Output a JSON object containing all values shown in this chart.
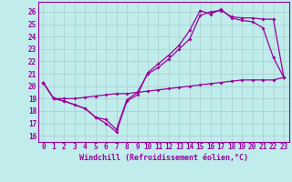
{
  "bg_color": "#c0ecec",
  "line_color": "#990099",
  "grid_color": "#aacccc",
  "xlabel": "Windchill (Refroidissement éolien,°C)",
  "xlim": [
    -0.5,
    23.5
  ],
  "ylim": [
    15.5,
    26.8
  ],
  "yticks": [
    16,
    17,
    18,
    19,
    20,
    21,
    22,
    23,
    24,
    25,
    26
  ],
  "xticks": [
    0,
    1,
    2,
    3,
    4,
    5,
    6,
    7,
    8,
    9,
    10,
    11,
    12,
    13,
    14,
    15,
    16,
    17,
    18,
    19,
    20,
    21,
    22,
    23
  ],
  "line1_x": [
    0,
    1,
    2,
    3,
    4,
    5,
    6,
    7,
    8,
    9,
    10,
    11,
    12,
    13,
    14,
    15,
    16,
    17,
    18,
    19,
    20,
    21,
    22,
    23
  ],
  "line1_y": [
    20.3,
    19.0,
    19.0,
    19.0,
    19.1,
    19.2,
    19.3,
    19.4,
    19.4,
    19.5,
    19.6,
    19.7,
    19.8,
    19.9,
    20.0,
    20.1,
    20.2,
    20.3,
    20.4,
    20.5,
    20.5,
    20.5,
    20.5,
    20.7
  ],
  "line2_x": [
    0,
    1,
    2,
    3,
    4,
    5,
    6,
    7,
    8,
    9,
    10,
    11,
    12,
    13,
    14,
    15,
    16,
    17,
    18,
    19,
    20,
    21,
    22,
    23
  ],
  "line2_y": [
    20.3,
    19.0,
    18.8,
    18.5,
    18.2,
    17.5,
    17.0,
    16.3,
    18.8,
    19.3,
    21.1,
    21.8,
    22.5,
    23.3,
    24.5,
    26.1,
    25.8,
    26.2,
    25.5,
    25.3,
    25.2,
    24.7,
    22.3,
    20.7
  ],
  "line3_x": [
    0,
    1,
    2,
    3,
    4,
    5,
    6,
    7,
    8,
    9,
    10,
    11,
    12,
    13,
    14,
    15,
    16,
    17,
    18,
    19,
    20,
    21,
    22,
    23
  ],
  "line3_y": [
    20.3,
    19.0,
    18.8,
    18.5,
    18.2,
    17.5,
    17.3,
    16.5,
    18.9,
    19.5,
    21.0,
    21.5,
    22.2,
    23.0,
    23.8,
    25.7,
    26.0,
    26.1,
    25.6,
    25.5,
    25.5,
    25.4,
    25.4,
    20.7
  ],
  "xlabel_fontsize": 6,
  "tick_fontsize": 5.5,
  "linewidth": 0.9,
  "markersize": 2.0
}
